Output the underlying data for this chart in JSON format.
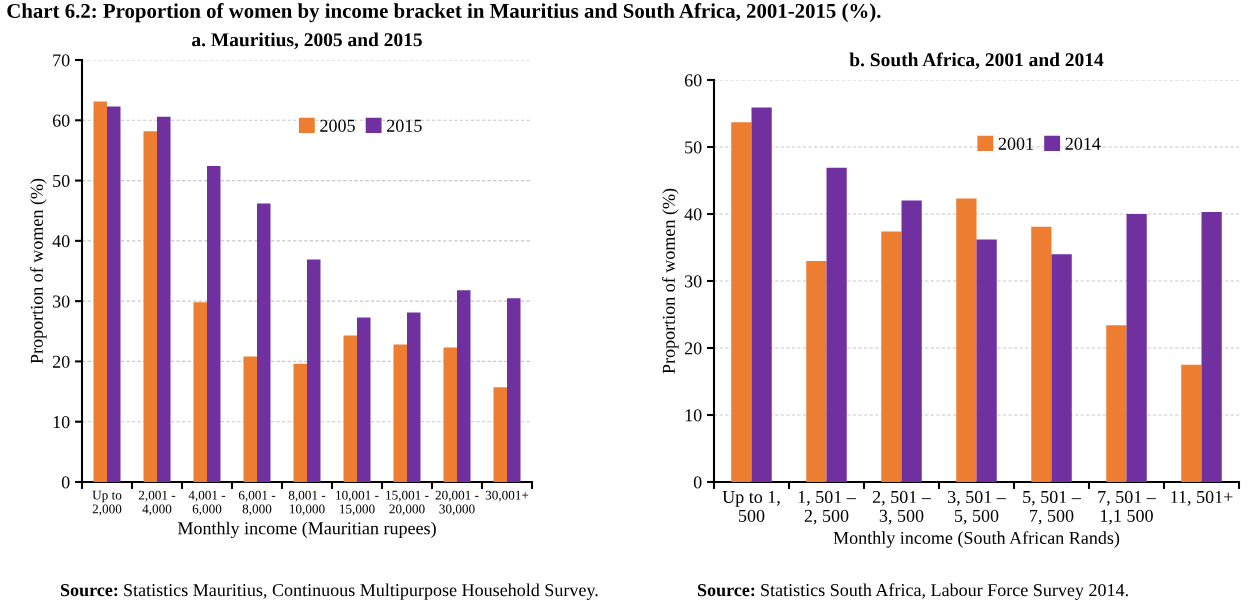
{
  "chart_data": [
    {
      "type": "bar",
      "title": "a. Mauritius, 2005 and 2015",
      "xlabel": "Monthly income (Mauritian rupees)",
      "ylabel": "Proportion of women (%)",
      "categories": [
        "Up to\n2,000",
        "2,001 -\n4,000",
        "4,001 -\n6,000",
        "6,001 -\n8,000",
        "8,001 -\n10,000",
        "10,001 -\n15,000",
        "15,001 -\n20,000",
        "20,001 -\n30,000",
        "30,001+"
      ],
      "series": [
        {
          "name": "2005",
          "color": "#ed7d31",
          "values": [
            63.1,
            58.2,
            29.8,
            20.8,
            19.6,
            24.3,
            22.8,
            22.3,
            15.7
          ]
        },
        {
          "name": "2015",
          "color": "#7030a0",
          "values": [
            62.3,
            60.6,
            52.4,
            46.2,
            36.9,
            27.3,
            28.1,
            31.8,
            30.5
          ]
        }
      ],
      "ylim": [
        0,
        70
      ],
      "yticks": [
        0,
        10,
        20,
        30,
        40,
        50,
        60,
        70
      ],
      "grid": "y",
      "legend": "top",
      "annotations": [
        "Chart 6.2: Proportion of women by income bracket in Mauritius and South Africa, 2001-2015 (%).",
        "Source: Statistics Mauritius, Continuous Multipurpose Household Survey."
      ]
    },
    {
      "type": "bar",
      "title": "b. South Africa, 2001 and 2014",
      "xlabel": "Monthly income (South African Rands)",
      "ylabel": "Proportion of women (%)",
      "categories": [
        "Up to 1,\n500",
        "1, 501 –\n2, 500",
        "2, 501 –\n3, 500",
        "3, 501 –\n5, 500",
        "5, 501 –\n7, 500",
        "7, 501 –\n1,1 500",
        "11, 501+"
      ],
      "series": [
        {
          "name": "2001",
          "color": "#ed7d31",
          "values": [
            53.7,
            33.0,
            37.4,
            42.3,
            38.1,
            23.4,
            17.5
          ]
        },
        {
          "name": "2014",
          "color": "#7030a0",
          "values": [
            55.9,
            46.9,
            42.0,
            36.2,
            34.0,
            40.0,
            40.3
          ]
        }
      ],
      "ylim": [
        0,
        60
      ],
      "yticks": [
        0,
        10,
        20,
        30,
        40,
        50,
        60
      ],
      "grid": "y",
      "legend": "top",
      "annotations": [
        "Source: Statistics South Africa, Labour Force Survey 2014."
      ]
    }
  ]
}
